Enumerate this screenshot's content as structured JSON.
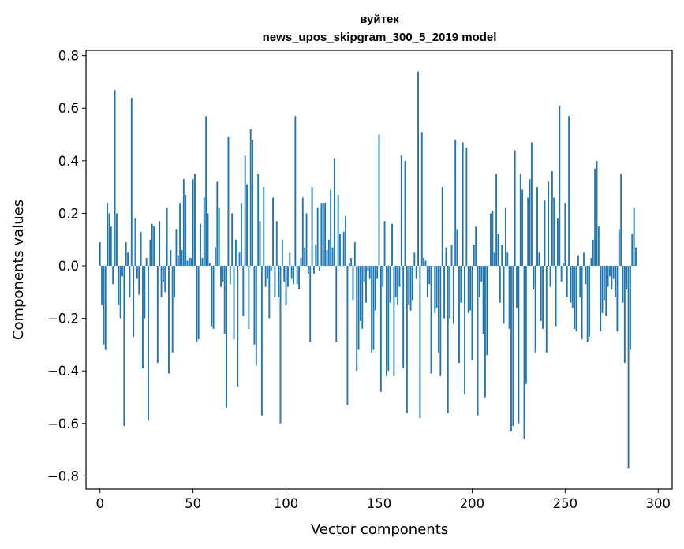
{
  "chart_data": {
    "type": "bar",
    "title": "вуйтек",
    "subtitle": "news_upos_skipgram_300_5_2019 model",
    "xlabel": "Vector components",
    "ylabel": "Components values",
    "xlim": [
      -7.5,
      307.5
    ],
    "ylim": [
      -0.85,
      0.82
    ],
    "xticks": [
      0,
      50,
      100,
      150,
      200,
      250,
      300
    ],
    "xtick_labels": [
      "0",
      "50",
      "100",
      "150",
      "200",
      "250",
      "300"
    ],
    "yticks": [
      -0.8,
      -0.6,
      -0.4,
      -0.2,
      0.0,
      0.2,
      0.4,
      0.6,
      0.8
    ],
    "ytick_labels": [
      "−0.8",
      "−0.6",
      "−0.4",
      "−0.2",
      "0.0",
      "0.2",
      "0.4",
      "0.6",
      "0.8"
    ],
    "bar_color": "#1f77b4",
    "grid": false,
    "values": [
      0.09,
      -0.15,
      -0.3,
      -0.32,
      0.24,
      0.2,
      0.15,
      -0.07,
      0.67,
      0.2,
      -0.15,
      -0.2,
      -0.04,
      -0.61,
      0.09,
      0.05,
      -0.12,
      0.64,
      -0.27,
      0.18,
      -0.05,
      -0.11,
      0.13,
      -0.39,
      -0.2,
      0.03,
      -0.59,
      0.1,
      0.16,
      0.15,
      0.0,
      -0.37,
      0.17,
      -0.12,
      -0.06,
      -0.1,
      0.22,
      -0.41,
      0.06,
      -0.33,
      -0.12,
      0.14,
      0.04,
      0.24,
      0.06,
      0.33,
      0.27,
      0.02,
      0.03,
      0.03,
      0.33,
      0.35,
      -0.29,
      -0.28,
      0.16,
      0.03,
      0.26,
      0.57,
      0.2,
      0.01,
      -0.23,
      -0.24,
      0.07,
      0.32,
      0.22,
      -0.08,
      -0.06,
      -0.26,
      -0.54,
      0.49,
      -0.07,
      0.2,
      -0.28,
      0.1,
      -0.46,
      0.05,
      0.24,
      -0.19,
      0.42,
      0.31,
      -0.24,
      0.52,
      0.48,
      -0.3,
      -0.38,
      0.35,
      0.17,
      -0.57,
      0.3,
      -0.08,
      -0.05,
      -0.2,
      -0.02,
      0.26,
      -0.12,
      0.17,
      -0.12,
      -0.6,
      0.1,
      -0.06,
      -0.15,
      -0.08,
      0.05,
      -0.05,
      -0.07,
      0.57,
      -0.07,
      -0.09,
      0.03,
      0.26,
      0.07,
      0.2,
      -0.03,
      -0.29,
      0.3,
      -0.03,
      0.08,
      0.22,
      -0.02,
      0.24,
      0.24,
      0.24,
      0.06,
      0.1,
      0.29,
      0.07,
      0.41,
      -0.29,
      0.27,
      0.12,
      0.0,
      0.13,
      0.19,
      -0.53,
      0.01,
      0.03,
      -0.13,
      0.09,
      -0.4,
      -0.32,
      -0.21,
      -0.24,
      -0.06,
      -0.14,
      -0.02,
      -0.05,
      -0.33,
      -0.32,
      -0.17,
      -0.05,
      0.5,
      -0.48,
      -0.08,
      0.17,
      -0.42,
      -0.4,
      -0.14,
      0.16,
      -0.42,
      -0.12,
      -0.15,
      -0.08,
      0.42,
      -0.39,
      0.4,
      -0.56,
      -0.15,
      -0.17,
      -0.13,
      0.05,
      -0.05,
      0.74,
      -0.58,
      0.51,
      0.03,
      0.02,
      -0.12,
      -0.07,
      -0.41,
      0.0,
      -0.18,
      -0.16,
      -0.33,
      -0.42,
      0.3,
      -0.2,
      0.07,
      -0.56,
      -0.2,
      0.08,
      -0.22,
      0.48,
      0.14,
      -0.37,
      -0.14,
      0.47,
      -0.49,
      0.45,
      -0.18,
      -0.17,
      -0.36,
      0.08,
      0.15,
      -0.57,
      -0.12,
      -0.06,
      -0.26,
      -0.5,
      -0.34,
      0.0,
      0.2,
      0.21,
      0.05,
      0.35,
      0.12,
      -0.14,
      0.08,
      -0.22,
      0.22,
      0.05,
      -0.24,
      -0.63,
      -0.61,
      0.44,
      -0.16,
      -0.6,
      0.35,
      0.29,
      -0.66,
      -0.45,
      0.26,
      0.33,
      0.47,
      -0.09,
      -0.33,
      0.3,
      0.05,
      -0.21,
      -0.24,
      0.25,
      -0.33,
      0.32,
      -0.08,
      0.36,
      0.26,
      -0.23,
      0.18,
      0.61,
      -0.06,
      0.01,
      0.24,
      -0.12,
      0.57,
      -0.14,
      -0.16,
      -0.24,
      -0.25,
      0.04,
      -0.12,
      -0.28,
      0.05,
      -0.07,
      -0.29,
      -0.27,
      0.03,
      0.1,
      0.37,
      0.4,
      0.15,
      -0.25,
      -0.18,
      -0.13,
      -0.19,
      -0.08,
      -0.04,
      -0.09,
      -0.05,
      -0.12,
      -0.25,
      0.14,
      0.35,
      -0.14,
      -0.37,
      -0.09,
      -0.77,
      -0.32,
      0.12,
      0.22,
      0.07
    ]
  }
}
